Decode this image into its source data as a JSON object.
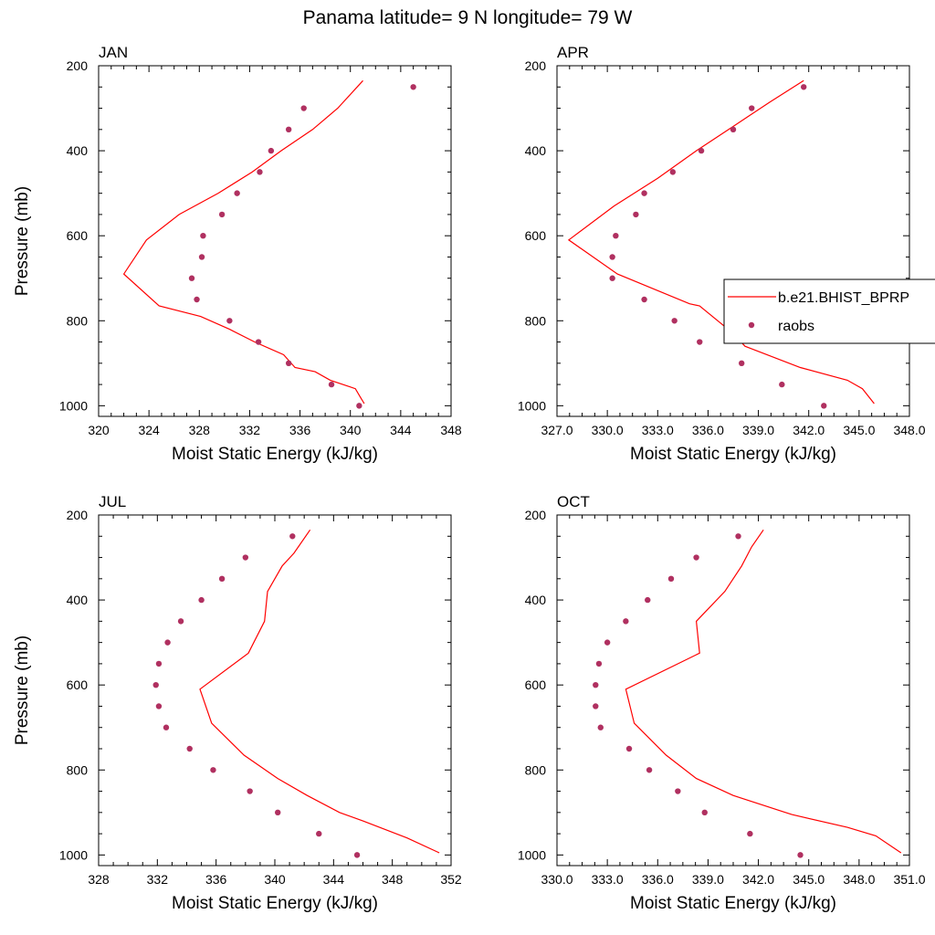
{
  "figure": {
    "title": "Panama  latitude= 9 N longitude= 79 W"
  },
  "colors": {
    "model": "#ff0000",
    "obs": "#b03060"
  },
  "legend": {
    "model_label": "b.e21.BHIST_BPRP",
    "obs_label": "raobs"
  },
  "chart_data": [
    {
      "type": "scatter",
      "panel_title": "JAN",
      "xlabel": "Moist Static Energy (kJ/kg)",
      "ylabel": "Pressure (mb)",
      "xlim": [
        320,
        348
      ],
      "ylim": [
        1025,
        200
      ],
      "y_inverted": true,
      "xticks": [
        320,
        324,
        328,
        332,
        336,
        340,
        344,
        348
      ],
      "xtick_labels": [
        "320",
        "324",
        "328",
        "332",
        "336",
        "340",
        "344",
        "348"
      ],
      "yticks": [
        200,
        400,
        600,
        800,
        1000
      ],
      "ytick_labels": [
        "200",
        "400",
        "600",
        "800",
        "1000"
      ],
      "series": [
        {
          "name": "b.e21.BHIST_BPRP",
          "kind": "line",
          "x": [
            341.1,
            340.8,
            340.4,
            338.4,
            337.2,
            335.6,
            334.7,
            332.4,
            330.4,
            328.1,
            324.8,
            322.0,
            323.8,
            326.4,
            329.5,
            332.2,
            334.5,
            337.0,
            339.0,
            341.0
          ],
          "y": [
            995,
            980,
            960,
            940,
            920,
            910,
            880,
            850,
            820,
            790,
            765,
            690,
            610,
            550,
            500,
            450,
            400,
            350,
            300,
            235
          ]
        },
        {
          "name": "raobs",
          "kind": "scatter",
          "x": [
            340.7,
            338.5,
            335.1,
            332.7,
            330.4,
            327.8,
            327.4,
            328.2,
            328.3,
            329.8,
            331.0,
            332.8,
            333.7,
            335.1,
            336.3,
            345.0
          ],
          "y": [
            1000,
            950,
            900,
            850,
            800,
            750,
            700,
            650,
            600,
            550,
            500,
            450,
            400,
            350,
            300,
            250
          ]
        }
      ]
    },
    {
      "type": "scatter",
      "panel_title": "APR",
      "xlabel": "Moist Static Energy (kJ/kg)",
      "ylabel": "",
      "xlim": [
        327,
        348
      ],
      "ylim": [
        1025,
        200
      ],
      "y_inverted": true,
      "xticks": [
        327,
        330,
        333,
        336,
        339,
        342,
        345,
        348
      ],
      "xtick_labels": [
        "327.0",
        "330.0",
        "333.0",
        "336.0",
        "339.0",
        "342.0",
        "345.0",
        "348.0"
      ],
      "yticks": [
        200,
        400,
        600,
        800,
        1000
      ],
      "ytick_labels": [
        "200",
        "400",
        "600",
        "800",
        "1000"
      ],
      "series": [
        {
          "name": "b.e21.BHIST_BPRP",
          "kind": "line",
          "x": [
            345.9,
            345.2,
            344.3,
            341.5,
            338.2,
            337.5,
            335.5,
            334.9,
            330.6,
            327.7,
            330.4,
            333.0,
            335.3,
            337.6,
            339.7,
            341.7
          ],
          "y": [
            995,
            960,
            940,
            910,
            860,
            830,
            765,
            760,
            690,
            610,
            530,
            465,
            400,
            340,
            285,
            235
          ]
        },
        {
          "name": "raobs",
          "kind": "scatter",
          "x": [
            342.9,
            340.4,
            338.0,
            335.5,
            334.0,
            332.2,
            330.3,
            330.3,
            330.5,
            331.7,
            332.2,
            333.9,
            335.6,
            337.5,
            338.6,
            341.7
          ],
          "y": [
            1000,
            950,
            900,
            850,
            800,
            750,
            700,
            650,
            600,
            550,
            500,
            450,
            400,
            350,
            300,
            250
          ]
        }
      ]
    },
    {
      "type": "scatter",
      "panel_title": "JUL",
      "xlabel": "Moist Static Energy (kJ/kg)",
      "ylabel": "Pressure (mb)",
      "xlim": [
        328,
        352
      ],
      "ylim": [
        1025,
        200
      ],
      "y_inverted": true,
      "xticks": [
        328,
        332,
        336,
        340,
        344,
        348,
        352
      ],
      "xtick_labels": [
        "328",
        "332",
        "336",
        "340",
        "344",
        "348",
        "352"
      ],
      "yticks": [
        200,
        400,
        600,
        800,
        1000
      ],
      "ytick_labels": [
        "200",
        "400",
        "600",
        "800",
        "1000"
      ],
      "series": [
        {
          "name": "b.e21.BHIST_BPRP",
          "kind": "line",
          "x": [
            351.2,
            349.0,
            346.0,
            344.4,
            342.2,
            340.2,
            337.9,
            335.7,
            334.9,
            338.2,
            339.3,
            339.5,
            340.5,
            341.3,
            342.4
          ],
          "y": [
            995,
            960,
            920,
            900,
            860,
            820,
            765,
            690,
            610,
            525,
            450,
            380,
            320,
            290,
            235
          ]
        },
        {
          "name": "raobs",
          "kind": "scatter",
          "x": [
            345.6,
            343.0,
            340.2,
            338.3,
            335.8,
            334.2,
            332.6,
            332.1,
            331.9,
            332.1,
            332.7,
            333.6,
            335.0,
            336.4,
            338.0,
            341.2
          ],
          "y": [
            1000,
            950,
            900,
            850,
            800,
            750,
            700,
            650,
            600,
            550,
            500,
            450,
            400,
            350,
            300,
            250
          ]
        }
      ]
    },
    {
      "type": "scatter",
      "panel_title": "OCT",
      "xlabel": "Moist Static Energy (kJ/kg)",
      "ylabel": "",
      "xlim": [
        330,
        351
      ],
      "ylim": [
        1025,
        200
      ],
      "y_inverted": true,
      "xticks": [
        330,
        333,
        336,
        339,
        342,
        345,
        348,
        351
      ],
      "xtick_labels": [
        "330.0",
        "333.0",
        "336.0",
        "339.0",
        "342.0",
        "345.0",
        "348.0",
        "351.0"
      ],
      "yticks": [
        200,
        400,
        600,
        800,
        1000
      ],
      "ytick_labels": [
        "200",
        "400",
        "600",
        "800",
        "1000"
      ],
      "series": [
        {
          "name": "b.e21.BHIST_BPRP",
          "kind": "line",
          "x": [
            350.5,
            349.0,
            347.3,
            344.0,
            340.5,
            338.3,
            336.5,
            334.6,
            334.1,
            338.5,
            338.3,
            340.0,
            341.0,
            341.6,
            342.3
          ],
          "y": [
            995,
            955,
            935,
            905,
            860,
            820,
            765,
            690,
            610,
            525,
            450,
            380,
            320,
            275,
            235
          ]
        },
        {
          "name": "raobs",
          "kind": "scatter",
          "x": [
            344.5,
            341.5,
            338.8,
            337.2,
            335.5,
            334.3,
            332.6,
            332.3,
            332.3,
            332.5,
            333.0,
            334.1,
            335.4,
            336.8,
            338.3,
            340.8
          ],
          "y": [
            1000,
            950,
            900,
            850,
            800,
            750,
            700,
            650,
            600,
            550,
            500,
            450,
            400,
            350,
            300,
            250
          ]
        }
      ]
    }
  ]
}
